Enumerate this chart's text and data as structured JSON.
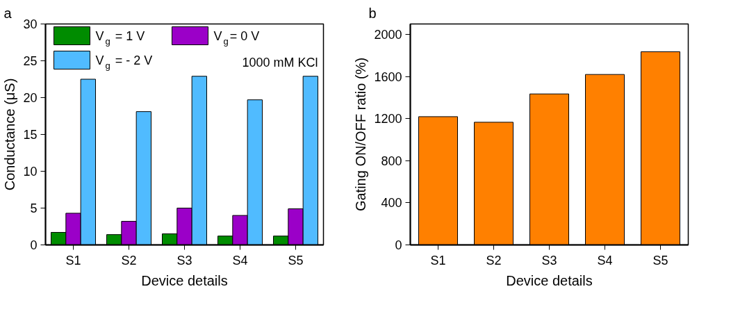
{
  "chart_data": [
    {
      "type": "bar",
      "categories": [
        "S1",
        "S2",
        "S3",
        "S4",
        "S5"
      ],
      "xlabel": "Device details",
      "ylabel": "Conductance (μS)",
      "ylim": [
        0,
        30
      ],
      "yticks": [
        0,
        5,
        10,
        15,
        20,
        25,
        30
      ],
      "grid": false,
      "legend": "top left",
      "annotations": [
        "a",
        "1000 mM KCl"
      ],
      "series": [
        {
          "name": "V$_{g}$ = 1 V",
          "color": "#008c00",
          "values": [
            1.7,
            1.4,
            1.5,
            1.2,
            1.2
          ]
        },
        {
          "name": "V$_{g}$= 0 V",
          "color": "#9b00c8",
          "values": [
            4.3,
            3.2,
            5.0,
            4.0,
            4.9
          ]
        },
        {
          "name": "V$_{g}$ = - 2 V",
          "color": "#50bbff",
          "values": [
            22.5,
            18.1,
            22.9,
            19.7,
            22.9
          ]
        }
      ]
    },
    {
      "type": "bar",
      "categories": [
        "S1",
        "S2",
        "S3",
        "S4",
        "S5"
      ],
      "xlabel": "Device details",
      "ylabel": "Gating ON/OFF ratio (%)",
      "ylim": [
        0,
        2100
      ],
      "yticks": [
        0,
        400,
        800,
        1200,
        1600,
        2000
      ],
      "grid": false,
      "annotations": [
        "b"
      ],
      "series": [
        {
          "color": "#ff8000",
          "values": [
            1219,
            1166,
            1435,
            1620,
            1836
          ]
        }
      ]
    }
  ]
}
